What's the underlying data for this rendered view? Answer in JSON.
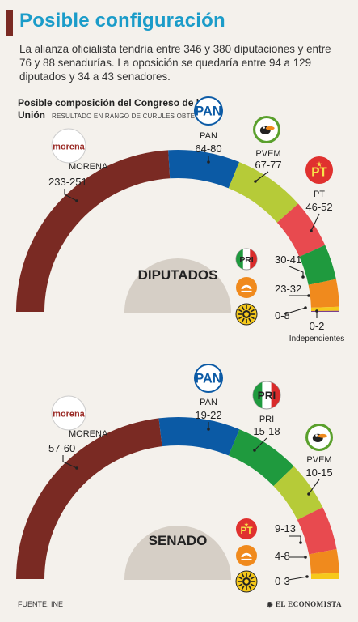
{
  "header": {
    "title": "Posible configuración",
    "lede": "La alianza oficialista tendría entre 346 y 380 diputaciones y entre 76 y 88 senadurías. La oposición se quedaría entre 94 a 129 diputados y 34 a 43 senadores.",
    "subtitle_line1": "Posible composición del Congreso de la",
    "subtitle_line2": "Unión",
    "subtitle_note": "RESULTADO EN RANGO DE CURULES OBTENIDAS"
  },
  "footer": {
    "source": "FUENTE: INE",
    "brand": "EL ECONOMISTA"
  },
  "colors": {
    "MORENA": "#7a2a23",
    "PAN": "#0b5aa5",
    "PVEM": "#b6cb38",
    "PT": "#e84a4f",
    "PRI": "#1f9a3e",
    "MC": "#f08a1d",
    "PRD": "#f6c91b",
    "IND": "#7b3f8f"
  },
  "chart_data": [
    {
      "type": "semicircle",
      "title": "DIPUTADOS",
      "parties": [
        {
          "name": "MORENA",
          "label": "MORENA",
          "range": "233-251",
          "min": 233,
          "max": 251,
          "logo": "morena-logo"
        },
        {
          "name": "PAN",
          "label": "PAN",
          "range": "64-80",
          "min": 64,
          "max": 80,
          "logo": "pan-logo"
        },
        {
          "name": "PVEM",
          "label": "PVEM",
          "range": "67-77",
          "min": 67,
          "max": 77,
          "logo": "pvem-logo"
        },
        {
          "name": "PT",
          "label": "PT",
          "range": "46-52",
          "min": 46,
          "max": 52,
          "logo": "pt-logo"
        },
        {
          "name": "PRI",
          "label": "",
          "range": "30-41",
          "min": 30,
          "max": 41,
          "logo": "pri-logo"
        },
        {
          "name": "MC",
          "label": "",
          "range": "23-32",
          "min": 23,
          "max": 32,
          "logo": "mc-logo"
        },
        {
          "name": "PRD",
          "label": "",
          "range": "0-8",
          "min": 0,
          "max": 8,
          "logo": "prd-logo"
        },
        {
          "name": "IND",
          "label": "Independientes",
          "range": "0-2",
          "min": 0,
          "max": 2,
          "logo": ""
        }
      ]
    },
    {
      "type": "semicircle",
      "title": "SENADO",
      "parties": [
        {
          "name": "MORENA",
          "label": "MORENA",
          "range": "57-60",
          "min": 57,
          "max": 60,
          "logo": "morena-logo"
        },
        {
          "name": "PAN",
          "label": "PAN",
          "range": "19-22",
          "min": 19,
          "max": 22,
          "logo": "pan-logo"
        },
        {
          "name": "PRI",
          "label": "PRI",
          "range": "15-18",
          "min": 15,
          "max": 18,
          "logo": "pri-logo"
        },
        {
          "name": "PVEM",
          "label": "PVEM",
          "range": "10-15",
          "min": 10,
          "max": 15,
          "logo": "pvem-logo"
        },
        {
          "name": "PT",
          "label": "",
          "range": "9-13",
          "min": 9,
          "max": 13,
          "logo": "pt-logo"
        },
        {
          "name": "MC",
          "label": "",
          "range": "4-8",
          "min": 4,
          "max": 8,
          "logo": "mc-logo"
        },
        {
          "name": "PRD",
          "label": "",
          "range": "0-3",
          "min": 0,
          "max": 3,
          "logo": "prd-logo"
        }
      ]
    }
  ]
}
